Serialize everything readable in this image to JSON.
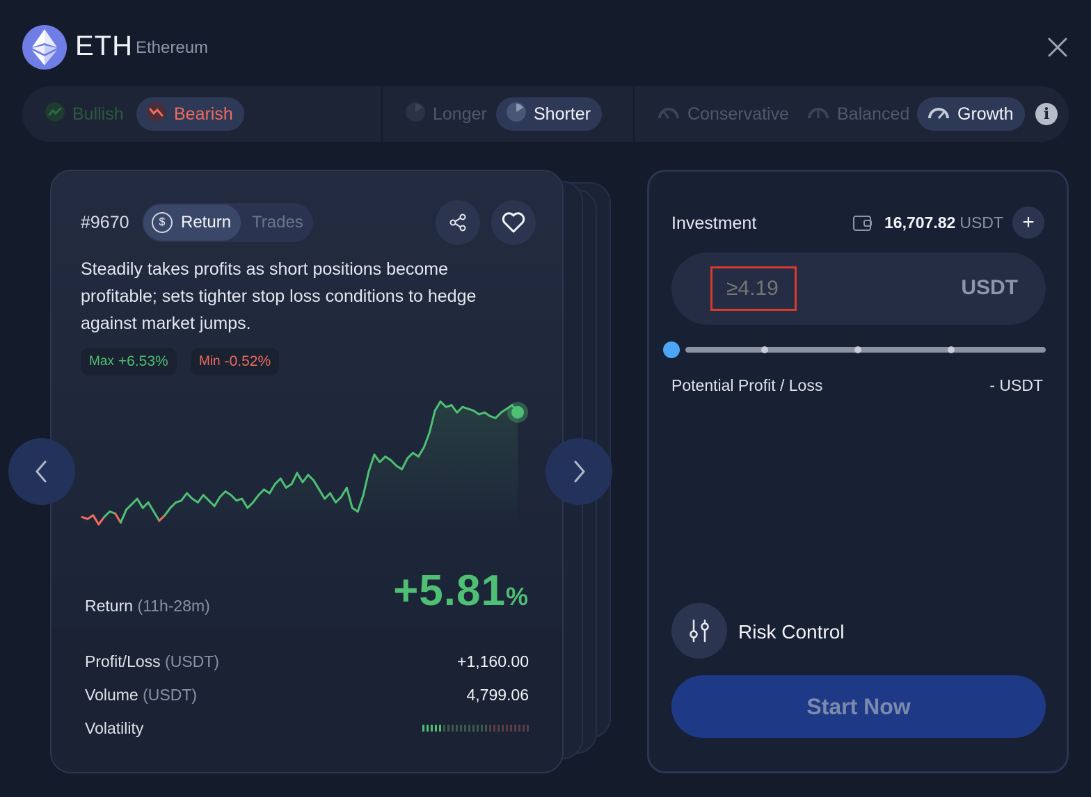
{
  "header": {
    "symbol": "ETH",
    "name": "Ethereum",
    "logo_icon": "ethereum-icon",
    "close_icon": "close-icon"
  },
  "filters": {
    "sentiment": [
      {
        "label": "Bullish",
        "icon": "trend-up-icon",
        "active": false
      },
      {
        "label": "Bearish",
        "icon": "trend-down-icon",
        "active": true
      }
    ],
    "duration": [
      {
        "label": "Longer",
        "icon": "pie-clock-icon",
        "active": false
      },
      {
        "label": "Shorter",
        "icon": "pie-clock-icon",
        "active": true
      }
    ],
    "risk": [
      {
        "label": "Conservative",
        "icon": "gauge-icon",
        "active": false
      },
      {
        "label": "Balanced",
        "icon": "gauge-icon",
        "active": false
      },
      {
        "label": "Growth",
        "icon": "gauge-icon",
        "active": true
      }
    ],
    "info_icon": "info-icon"
  },
  "card": {
    "id": "#9670",
    "tabs": {
      "return": "Return",
      "trades": "Trades"
    },
    "description": "Steadily takes profits as short positions become profitable; sets tighter stop loss conditions to hedge against market jumps.",
    "max_label": "Max",
    "max_value": "+6.53%",
    "min_label": "Min",
    "min_value": "-0.52%",
    "return_label": "Return",
    "return_period": "(11h-28m)",
    "return_value": "+5.81",
    "return_unit": "%",
    "metrics": {
      "profit_label": "Profit/Loss",
      "profit_unit": "(USDT)",
      "profit_value": "+1,160.00",
      "volume_label": "Volume",
      "volume_unit": "(USDT)",
      "volume_value": "4,799.06",
      "volatility_label": "Volatility",
      "volatility_level": 0.18
    }
  },
  "panel": {
    "investment_label": "Investment",
    "balance_value": "16,707.82",
    "balance_unit": "USDT",
    "amount_placeholder": "≥4.19",
    "amount_unit": "USDT",
    "slider_value": 0,
    "pl_label": "Potential Profit / Loss",
    "pl_value": "- USDT",
    "risk_label": "Risk Control",
    "start_label": "Start Now"
  },
  "colors": {
    "accent_green": "#4fbf74",
    "accent_red": "#ef6b5e",
    "primary_button": "#1e3a86",
    "slider_thumb": "#4ca5f7"
  },
  "chart_data": {
    "type": "line",
    "series": [
      {
        "values": [
          0.1,
          0.0,
          0.2,
          -0.3,
          0.1,
          0.4,
          0.3,
          -0.2,
          0.5,
          0.8,
          1.1,
          0.6,
          0.9,
          0.4,
          -0.1,
          0.2,
          0.6,
          0.9,
          1.0,
          1.4,
          1.1,
          0.9,
          1.3,
          1.0,
          0.7,
          1.2,
          1.5,
          1.3,
          1.0,
          1.1,
          0.6,
          0.9,
          1.3,
          1.6,
          1.4,
          1.9,
          2.2,
          1.7,
          1.9,
          2.5,
          2.0,
          2.4,
          2.1,
          1.6,
          1.1,
          1.4,
          0.9,
          1.2,
          1.7,
          0.6,
          0.4,
          1.3,
          2.6,
          3.5,
          3.1,
          3.4,
          3.2,
          2.9,
          2.7,
          3.3,
          3.6,
          3.4,
          3.9,
          4.7,
          5.9,
          6.4,
          6.1,
          6.2,
          5.8,
          6.1,
          6.0,
          5.9,
          5.7,
          5.8,
          5.6,
          5.5,
          5.8,
          6.0,
          6.2,
          5.81
        ]
      }
    ]
  }
}
